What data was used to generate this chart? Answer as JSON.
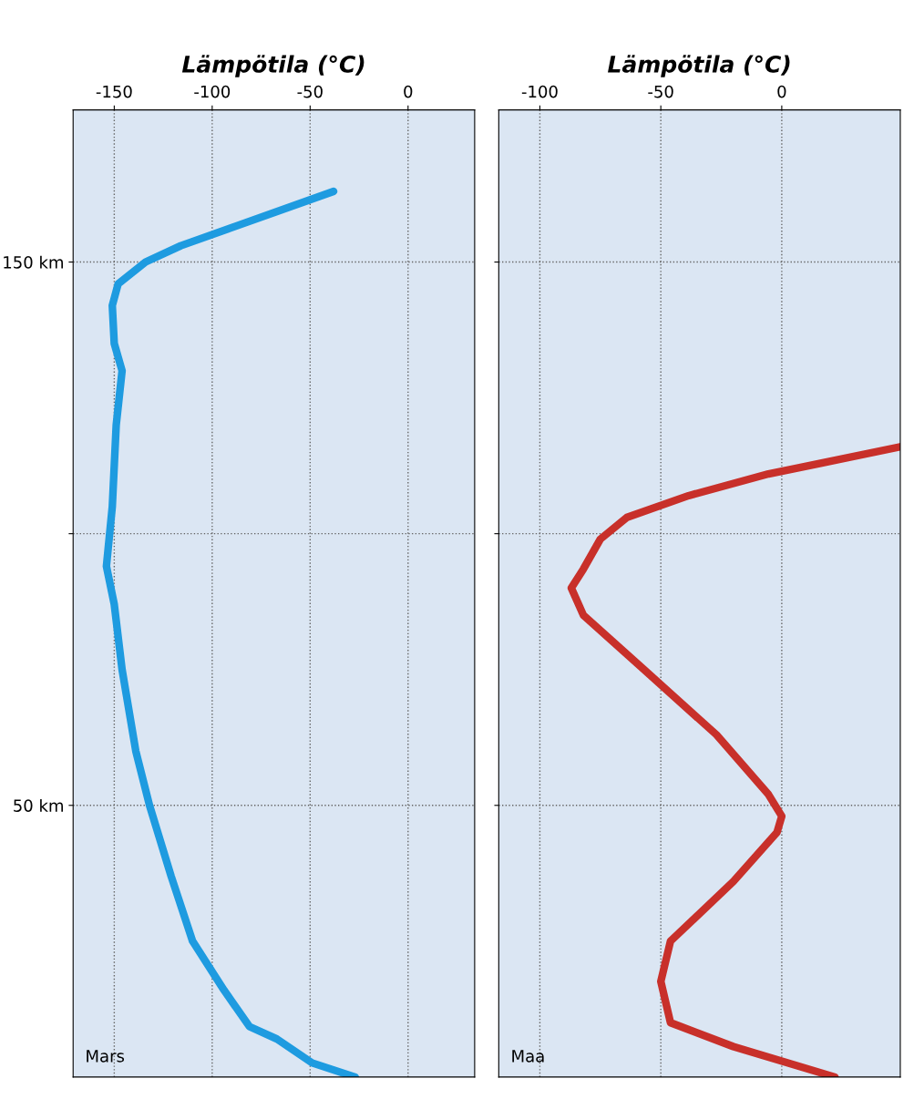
{
  "chart_data": [
    {
      "type": "line",
      "xlabel": "Lämpötila (°C)",
      "xlim": [
        -171,
        34
      ],
      "xticks": [
        -150,
        -100,
        -50,
        0
      ],
      "ylim": [
        0,
        178
      ],
      "yticks": [
        {
          "value": 50,
          "label": "50 km"
        },
        {
          "value": 100,
          "label": null
        },
        {
          "value": 150,
          "label": "150 km"
        }
      ],
      "grid": true,
      "annotations": [
        "Mars"
      ],
      "series": [
        {
          "color": "#1e9be0",
          "x": [
            -38,
            -116,
            -134,
            -148,
            -151,
            -150,
            -146,
            -149,
            -151,
            -154,
            -150,
            -146,
            -139,
            -132,
            -121,
            -110,
            -94,
            -81,
            -67,
            -49,
            -27
          ],
          "values": [
            163,
            153,
            150,
            146,
            142,
            135,
            130,
            120,
            105,
            94,
            87,
            75,
            60,
            50,
            37,
            25,
            16,
            9.3,
            7,
            2.6,
            0
          ]
        }
      ]
    },
    {
      "type": "line",
      "xlabel": "Lämpötila (°C)",
      "xlim": [
        -117,
        49
      ],
      "xticks": [
        -100,
        -50,
        0
      ],
      "ylim": [
        0,
        178
      ],
      "yticks": [
        {
          "value": 50,
          "label": null
        },
        {
          "value": 100,
          "label": null
        },
        {
          "value": 150,
          "label": null
        }
      ],
      "grid": true,
      "tick_labels": "x",
      "annotations": [
        "Maa"
      ],
      "series": [
        {
          "color": "#c8302a",
          "x": [
            49,
            16.5,
            -5.5,
            -38.5,
            -64,
            -75,
            -82,
            -87,
            -82,
            -57,
            -27,
            -5.5,
            0,
            -2,
            -20,
            -46,
            -50,
            -46,
            -20,
            22
          ],
          "values": [
            116,
            113,
            111,
            107,
            103,
            99,
            93.5,
            90,
            85,
            75,
            63,
            52,
            48,
            45,
            36,
            25,
            17.6,
            10,
            5.6,
            0
          ]
        }
      ]
    }
  ]
}
